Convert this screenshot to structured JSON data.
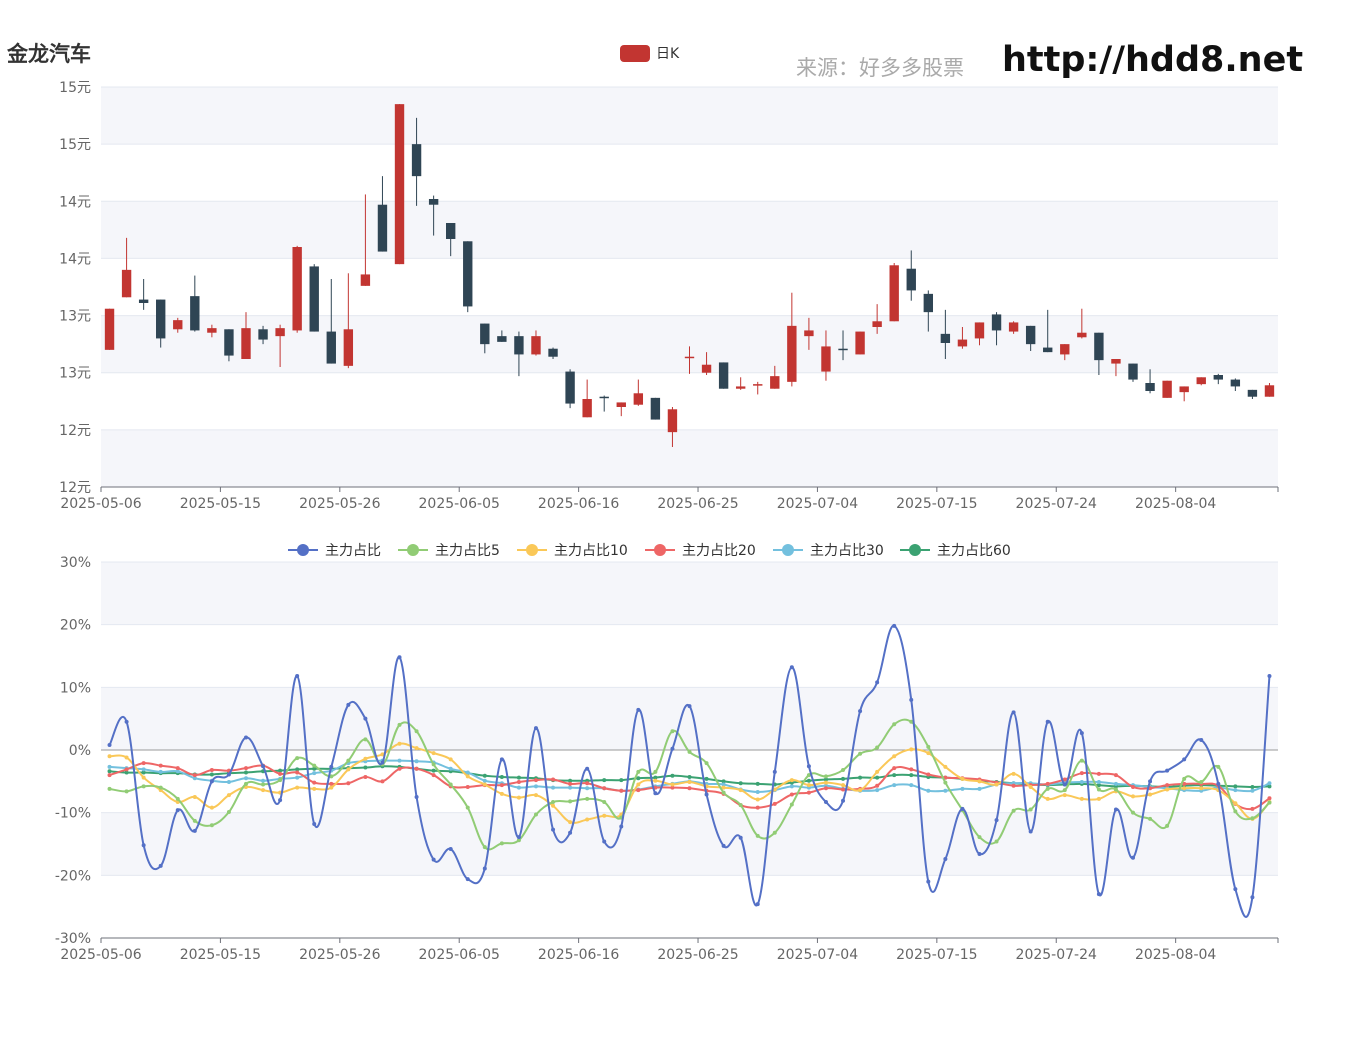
{
  "header": {
    "stock_name": "金龙汽车",
    "source_label": "来源：好多多股票",
    "site_url": "http://hdd8.net"
  },
  "colors": {
    "up": "#c23531",
    "down": "#2f4554",
    "band": "#f5f6fa",
    "grid": "#e4e8f0"
  },
  "chart_data": [
    {
      "type": "candlestick",
      "legend": "日K",
      "y_tick_labels": [
        "12元",
        "12元",
        "13元",
        "13元",
        "14元",
        "14元",
        "15元",
        "15元"
      ],
      "ylim": [
        12.0,
        15.5
      ],
      "x_tick_labels": [
        "2025-05-06",
        "2025-05-15",
        "2025-05-26",
        "2025-06-05",
        "2025-06-16",
        "2025-06-25",
        "2025-07-04",
        "2025-07-15",
        "2025-07-24",
        "2025-08-04"
      ],
      "x_tick_indices": [
        0,
        7,
        14,
        21,
        28,
        35,
        42,
        49,
        56,
        63
      ],
      "candles": [
        {
          "o": 13.2,
          "c": 13.56,
          "h": 13.56,
          "l": 13.2
        },
        {
          "o": 13.66,
          "c": 13.9,
          "h": 14.18,
          "l": 13.66
        },
        {
          "o": 13.64,
          "c": 13.61,
          "h": 13.82,
          "l": 13.55
        },
        {
          "o": 13.64,
          "c": 13.3,
          "h": 13.64,
          "l": 13.22
        },
        {
          "o": 13.38,
          "c": 13.46,
          "h": 13.48,
          "l": 13.35
        },
        {
          "o": 13.67,
          "c": 13.37,
          "h": 13.85,
          "l": 13.36
        },
        {
          "o": 13.35,
          "c": 13.39,
          "h": 13.42,
          "l": 13.31
        },
        {
          "o": 13.38,
          "c": 13.15,
          "h": 13.38,
          "l": 13.1
        },
        {
          "o": 13.12,
          "c": 13.39,
          "h": 13.53,
          "l": 13.12
        },
        {
          "o": 13.38,
          "c": 13.29,
          "h": 13.41,
          "l": 13.25
        },
        {
          "o": 13.32,
          "c": 13.39,
          "h": 13.42,
          "l": 13.05
        },
        {
          "o": 13.37,
          "c": 14.1,
          "h": 14.11,
          "l": 13.35
        },
        {
          "o": 13.93,
          "c": 13.36,
          "h": 13.95,
          "l": 13.36
        },
        {
          "o": 13.36,
          "c": 13.08,
          "h": 13.82,
          "l": 13.08
        },
        {
          "o": 13.06,
          "c": 13.38,
          "h": 13.87,
          "l": 13.04
        },
        {
          "o": 13.76,
          "c": 13.86,
          "h": 14.56,
          "l": 13.76
        },
        {
          "o": 14.47,
          "c": 14.06,
          "h": 14.72,
          "l": 14.06
        },
        {
          "o": 13.95,
          "c": 15.35,
          "h": 15.35,
          "l": 13.95
        },
        {
          "o": 15.0,
          "c": 14.72,
          "h": 15.23,
          "l": 14.46
        },
        {
          "o": 14.52,
          "c": 14.47,
          "h": 14.55,
          "l": 14.2
        },
        {
          "o": 14.31,
          "c": 14.17,
          "h": 14.31,
          "l": 14.02
        },
        {
          "o": 14.15,
          "c": 13.58,
          "h": 14.15,
          "l": 13.53
        },
        {
          "o": 13.43,
          "c": 13.25,
          "h": 13.43,
          "l": 13.17
        },
        {
          "o": 13.32,
          "c": 13.27,
          "h": 13.37,
          "l": 13.27
        },
        {
          "o": 13.32,
          "c": 13.16,
          "h": 13.36,
          "l": 12.97
        },
        {
          "o": 13.16,
          "c": 13.32,
          "h": 13.37,
          "l": 13.15
        },
        {
          "o": 13.21,
          "c": 13.14,
          "h": 13.22,
          "l": 13.12
        },
        {
          "o": 13.01,
          "c": 12.73,
          "h": 13.03,
          "l": 12.69
        },
        {
          "o": 12.61,
          "c": 12.77,
          "h": 12.94,
          "l": 12.61
        },
        {
          "o": 12.79,
          "c": 12.78,
          "h": 12.8,
          "l": 12.66
        },
        {
          "o": 12.7,
          "c": 12.74,
          "h": 12.74,
          "l": 12.62
        },
        {
          "o": 12.72,
          "c": 12.82,
          "h": 12.94,
          "l": 12.71
        },
        {
          "o": 12.78,
          "c": 12.59,
          "h": 12.78,
          "l": 12.59
        },
        {
          "o": 12.48,
          "c": 12.68,
          "h": 12.7,
          "l": 12.35
        },
        {
          "o": 13.14,
          "c": 13.14,
          "h": 13.23,
          "l": 12.99
        },
        {
          "o": 13.0,
          "c": 13.07,
          "h": 13.18,
          "l": 12.98
        },
        {
          "o": 13.09,
          "c": 12.86,
          "h": 13.09,
          "l": 12.86
        },
        {
          "o": 12.86,
          "c": 12.88,
          "h": 12.96,
          "l": 12.85
        },
        {
          "o": 12.89,
          "c": 12.9,
          "h": 12.92,
          "l": 12.81
        },
        {
          "o": 12.86,
          "c": 12.97,
          "h": 13.06,
          "l": 12.86
        },
        {
          "o": 12.92,
          "c": 13.41,
          "h": 13.7,
          "l": 12.88
        },
        {
          "o": 13.32,
          "c": 13.37,
          "h": 13.48,
          "l": 13.2
        },
        {
          "o": 13.01,
          "c": 13.23,
          "h": 13.37,
          "l": 12.93
        },
        {
          "o": 13.21,
          "c": 13.2,
          "h": 13.37,
          "l": 13.11
        },
        {
          "o": 13.16,
          "c": 13.36,
          "h": 13.36,
          "l": 13.16
        },
        {
          "o": 13.4,
          "c": 13.45,
          "h": 13.6,
          "l": 13.34
        },
        {
          "o": 13.45,
          "c": 13.94,
          "h": 13.96,
          "l": 13.45
        },
        {
          "o": 13.91,
          "c": 13.72,
          "h": 14.07,
          "l": 13.63
        },
        {
          "o": 13.69,
          "c": 13.53,
          "h": 13.72,
          "l": 13.36
        },
        {
          "o": 13.34,
          "c": 13.26,
          "h": 13.55,
          "l": 13.12
        },
        {
          "o": 13.23,
          "c": 13.29,
          "h": 13.4,
          "l": 13.21
        },
        {
          "o": 13.3,
          "c": 13.44,
          "h": 13.44,
          "l": 13.24
        },
        {
          "o": 13.51,
          "c": 13.37,
          "h": 13.53,
          "l": 13.24
        },
        {
          "o": 13.36,
          "c": 13.44,
          "h": 13.45,
          "l": 13.34
        },
        {
          "o": 13.41,
          "c": 13.25,
          "h": 13.41,
          "l": 13.19
        },
        {
          "o": 13.22,
          "c": 13.18,
          "h": 13.55,
          "l": 13.18
        },
        {
          "o": 13.16,
          "c": 13.25,
          "h": 13.25,
          "l": 13.11
        },
        {
          "o": 13.31,
          "c": 13.35,
          "h": 13.56,
          "l": 13.3
        },
        {
          "o": 13.35,
          "c": 13.11,
          "h": 13.35,
          "l": 12.98
        },
        {
          "o": 13.08,
          "c": 13.12,
          "h": 13.12,
          "l": 12.97
        },
        {
          "o": 13.08,
          "c": 12.94,
          "h": 13.08,
          "l": 12.92
        },
        {
          "o": 12.91,
          "c": 12.84,
          "h": 13.03,
          "l": 12.82
        },
        {
          "o": 12.78,
          "c": 12.93,
          "h": 12.93,
          "l": 12.78
        },
        {
          "o": 12.83,
          "c": 12.88,
          "h": 12.88,
          "l": 12.75
        },
        {
          "o": 12.9,
          "c": 12.96,
          "h": 12.96,
          "l": 12.89
        },
        {
          "o": 12.98,
          "c": 12.94,
          "h": 12.99,
          "l": 12.9
        },
        {
          "o": 12.94,
          "c": 12.88,
          "h": 12.95,
          "l": 12.84
        },
        {
          "o": 12.85,
          "c": 12.79,
          "h": 12.85,
          "l": 12.77
        },
        {
          "o": 12.79,
          "c": 12.89,
          "h": 12.91,
          "l": 12.79
        }
      ]
    },
    {
      "type": "line",
      "y_tick_labels": [
        "-30%",
        "-20%",
        "-10%",
        "0%",
        "10%",
        "20%",
        "30%"
      ],
      "ylim": [
        -30,
        30
      ],
      "x_tick_labels": [
        "2025-05-06",
        "2025-05-15",
        "2025-05-26",
        "2025-06-05",
        "2025-06-16",
        "2025-06-25",
        "2025-07-04",
        "2025-07-15",
        "2025-07-24",
        "2025-08-04"
      ],
      "x_tick_indices": [
        0,
        7,
        14,
        21,
        28,
        35,
        42,
        49,
        56,
        63
      ],
      "series": [
        {
          "name": "主力占比",
          "color": "#5470c6",
          "values": [
            0.8,
            4.5,
            -15.2,
            -18.5,
            -9.6,
            -12.9,
            -5.0,
            -3.9,
            2.0,
            -2.6,
            -8.0,
            11.8,
            -11.8,
            -2.7,
            7.2,
            5.0,
            -2.0,
            14.8,
            -7.5,
            -17.5,
            -15.8,
            -20.6,
            -18.9,
            -1.5,
            -13.9,
            3.5,
            -12.7,
            -13.2,
            -3.0,
            -14.6,
            -12.2,
            6.4,
            -6.9,
            0.2,
            7.0,
            -7.1,
            -15.3,
            -14.0,
            -24.6,
            -3.5,
            13.2,
            -2.6,
            -8.3,
            -8.1,
            6.2,
            10.8,
            19.8,
            8.0,
            -21.0,
            -17.4,
            -9.4,
            -16.6,
            -11.2,
            6.0,
            -13.0,
            4.5,
            -5.5,
            2.7,
            -23.0,
            -9.5,
            -17.2,
            -5.0,
            -3.3,
            -1.5,
            1.6,
            -5.4,
            -22.2,
            -23.5,
            11.8
          ]
        },
        {
          "name": "主力占比5",
          "color": "#91cc75",
          "values": [
            -6.2,
            -6.6,
            -5.8,
            -6.0,
            -7.8,
            -11.3,
            -12.0,
            -9.9,
            -5.4,
            -5.5,
            -4.8,
            -1.3,
            -2.5,
            -4.2,
            -1.7,
            1.7,
            -2.3,
            4.0,
            3.0,
            -2.3,
            -5.5,
            -9.2,
            -15.5,
            -14.9,
            -14.4,
            -10.3,
            -8.3,
            -8.2,
            -7.8,
            -8.3,
            -10.8,
            -3.5,
            -3.5,
            3.0,
            -0.3,
            -2.1,
            -6.8,
            -8.8,
            -13.7,
            -13.2,
            -8.7,
            -4.0,
            -4.2,
            -3.2,
            -0.6,
            0.4,
            4.1,
            4.5,
            0.5,
            -5.2,
            -9.6,
            -13.9,
            -14.6,
            -9.7,
            -9.5,
            -6.2,
            -6.4,
            -1.7,
            -6.3,
            -6.3,
            -10.0,
            -11.0,
            -12.1,
            -4.6,
            -5.1,
            -2.7,
            -9.8,
            -10.9,
            -8.4
          ]
        },
        {
          "name": "主力占比10",
          "color": "#fac858",
          "values": [
            -1.0,
            -1.2,
            -4.4,
            -6.4,
            -8.3,
            -7.5,
            -9.2,
            -7.2,
            -5.9,
            -6.4,
            -6.8,
            -6.0,
            -6.2,
            -6.0,
            -3.1,
            -1.4,
            -0.7,
            1.0,
            0.3,
            -0.5,
            -1.5,
            -4.2,
            -5.5,
            -7.0,
            -7.6,
            -7.2,
            -8.9,
            -11.5,
            -11.1,
            -10.5,
            -10.3,
            -5.5,
            -4.9,
            -5.5,
            -5.1,
            -5.8,
            -6.0,
            -6.4,
            -7.9,
            -6.3,
            -4.8,
            -5.6,
            -5.2,
            -5.6,
            -6.4,
            -3.5,
            -1.0,
            0.1,
            -0.5,
            -2.7,
            -4.6,
            -5.0,
            -5.5,
            -3.8,
            -5.9,
            -7.8,
            -7.2,
            -7.8,
            -7.8,
            -6.6,
            -7.4,
            -7.1,
            -6.3,
            -6.1,
            -6.1,
            -6.4,
            -8.5,
            -11.0,
            -8.3
          ]
        },
        {
          "name": "主力占比20",
          "color": "#ee6666",
          "values": [
            -4.0,
            -3.1,
            -2.1,
            -2.5,
            -2.9,
            -4.0,
            -3.2,
            -3.3,
            -2.9,
            -2.5,
            -3.8,
            -3.6,
            -5.2,
            -5.4,
            -5.3,
            -4.3,
            -5.0,
            -3.0,
            -3.0,
            -4.0,
            -5.8,
            -5.9,
            -5.6,
            -5.6,
            -5.1,
            -4.8,
            -4.7,
            -5.4,
            -5.3,
            -6.1,
            -6.5,
            -6.4,
            -6.0,
            -6.0,
            -6.1,
            -6.5,
            -7.0,
            -8.8,
            -9.2,
            -8.6,
            -7.1,
            -6.8,
            -6.1,
            -6.3,
            -6.2,
            -5.7,
            -2.9,
            -3.1,
            -3.9,
            -4.4,
            -4.5,
            -4.7,
            -5.2,
            -5.7,
            -5.6,
            -5.4,
            -4.7,
            -3.7,
            -3.8,
            -4.0,
            -5.9,
            -6.1,
            -5.6,
            -5.4,
            -5.4,
            -5.7,
            -8.6,
            -9.4,
            -7.7
          ]
        },
        {
          "name": "主力占比30",
          "color": "#73c0de",
          "values": [
            -2.7,
            -2.9,
            -3.1,
            -3.5,
            -3.4,
            -4.5,
            -4.9,
            -5.1,
            -4.5,
            -4.9,
            -4.6,
            -4.4,
            -3.7,
            -3.3,
            -2.1,
            -1.8,
            -1.7,
            -1.7,
            -1.8,
            -2.0,
            -3.0,
            -3.6,
            -4.9,
            -5.3,
            -6.0,
            -5.8,
            -6.0,
            -6.0,
            -6.1,
            -6.1,
            -6.5,
            -6.3,
            -5.8,
            -5.4,
            -5.0,
            -5.4,
            -5.5,
            -6.3,
            -6.7,
            -6.4,
            -5.8,
            -6.0,
            -5.7,
            -6.2,
            -6.5,
            -6.4,
            -5.6,
            -5.6,
            -6.5,
            -6.5,
            -6.2,
            -6.2,
            -5.5,
            -5.3,
            -5.3,
            -5.5,
            -5.2,
            -5.1,
            -5.1,
            -5.4,
            -5.6,
            -5.9,
            -6.1,
            -6.4,
            -6.5,
            -6.0,
            -6.4,
            -6.5,
            -5.3
          ]
        },
        {
          "name": "主力占比60",
          "color": "#3ba272",
          "values": [
            -3.4,
            -3.6,
            -3.6,
            -3.7,
            -3.7,
            -3.9,
            -3.9,
            -3.7,
            -3.6,
            -3.4,
            -3.3,
            -3.1,
            -3.0,
            -3.0,
            -2.9,
            -2.8,
            -2.6,
            -2.7,
            -3.0,
            -3.3,
            -3.4,
            -3.7,
            -4.1,
            -4.3,
            -4.4,
            -4.5,
            -4.8,
            -4.9,
            -4.9,
            -4.8,
            -4.8,
            -4.5,
            -4.4,
            -4.1,
            -4.3,
            -4.6,
            -5.0,
            -5.3,
            -5.4,
            -5.5,
            -5.2,
            -4.9,
            -4.7,
            -4.6,
            -4.4,
            -4.4,
            -4.0,
            -4.0,
            -4.3,
            -4.4,
            -4.6,
            -4.9,
            -5.1,
            -5.3,
            -5.5,
            -5.6,
            -5.5,
            -5.4,
            -5.6,
            -5.8,
            -5.7,
            -5.8,
            -5.9,
            -5.7,
            -5.6,
            -5.7,
            -5.8,
            -5.9,
            -5.8
          ]
        }
      ]
    }
  ]
}
